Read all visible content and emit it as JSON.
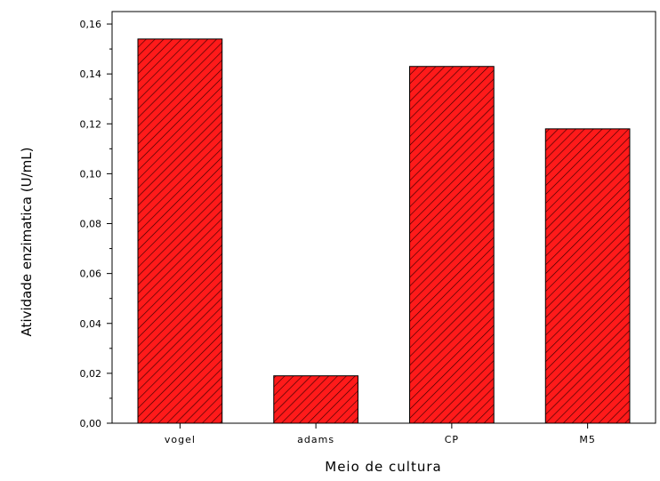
{
  "chart_data": {
    "type": "bar",
    "categories": [
      "vogel",
      "adams",
      "CP",
      "M5"
    ],
    "values": [
      0.154,
      0.019,
      0.143,
      0.118
    ],
    "title": "",
    "xlabel": "Meio de cultura",
    "ylabel": "Atividade enzimatica (U/mL)",
    "ylim": [
      0,
      0.165
    ],
    "yticks": [
      "0,00",
      "0,02",
      "0,04",
      "0,06",
      "0,08",
      "0,10",
      "0,12",
      "0,14",
      "0,16"
    ],
    "ytick_values": [
      0,
      0.02,
      0.04,
      0.06,
      0.08,
      0.1,
      0.12,
      0.14,
      0.16
    ],
    "grid": false,
    "bar_fill_color": "#ff1a1a",
    "bar_hatch_color": "#3a0000",
    "bar_edge_color": "#000000",
    "bar_pattern": "diagonal-hatch"
  }
}
